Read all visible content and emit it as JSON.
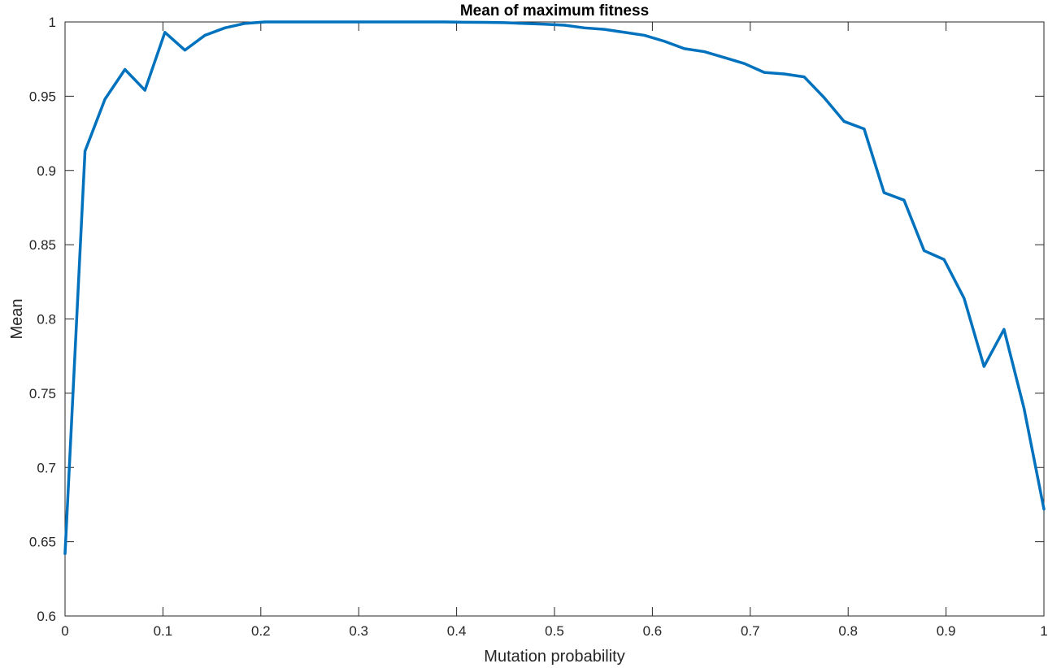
{
  "chart_data": {
    "type": "line",
    "title": "Mean of maximum fitness",
    "xlabel": "Mutation probability",
    "ylabel": "Mean",
    "xlim": [
      0,
      1
    ],
    "ylim": [
      0.6,
      1
    ],
    "xticks": [
      "0",
      "0.1",
      "0.2",
      "0.3",
      "0.4",
      "0.5",
      "0.6",
      "0.7",
      "0.8",
      "0.9",
      "1"
    ],
    "xtick_values": [
      0,
      0.1,
      0.2,
      0.3,
      0.4,
      0.5,
      0.6,
      0.7,
      0.8,
      0.9,
      1
    ],
    "yticks": [
      "0.6",
      "0.65",
      "0.7",
      "0.75",
      "0.8",
      "0.85",
      "0.9",
      "0.95",
      "1"
    ],
    "ytick_values": [
      0.6,
      0.65,
      0.7,
      0.75,
      0.8,
      0.85,
      0.9,
      0.95,
      1
    ],
    "grid": false,
    "legend": "none",
    "series": [
      {
        "color": "#0072bd",
        "x": [
          0,
          0.0204,
          0.0408,
          0.0612,
          0.0816,
          0.102,
          0.1224,
          0.1429,
          0.1633,
          0.1837,
          0.2041,
          0.2245,
          0.2449,
          0.2653,
          0.2857,
          0.3061,
          0.3265,
          0.3469,
          0.3673,
          0.3878,
          0.4082,
          0.4286,
          0.449,
          0.4694,
          0.4898,
          0.5102,
          0.5306,
          0.551,
          0.5714,
          0.5918,
          0.6122,
          0.6327,
          0.6531,
          0.6735,
          0.6939,
          0.7143,
          0.7347,
          0.7551,
          0.7755,
          0.7959,
          0.8163,
          0.8367,
          0.8571,
          0.8776,
          0.898,
          0.9184,
          0.9388,
          0.9592,
          0.9796,
          1
        ],
        "y": [
          0.642,
          0.913,
          0.948,
          0.968,
          0.954,
          0.993,
          0.981,
          0.991,
          0.996,
          0.999,
          1.0,
          1.0,
          1.0,
          1.0,
          1.0,
          1.0,
          1.0,
          1.0,
          1.0,
          1.0,
          0.9998,
          0.9997,
          0.9995,
          0.999,
          0.9985,
          0.9978,
          0.996,
          0.995,
          0.993,
          0.991,
          0.987,
          0.982,
          0.98,
          0.976,
          0.972,
          0.966,
          0.965,
          0.963,
          0.949,
          0.933,
          0.928,
          0.885,
          0.88,
          0.846,
          0.84,
          0.814,
          0.768,
          0.793,
          0.74,
          0.672
        ]
      }
    ]
  }
}
